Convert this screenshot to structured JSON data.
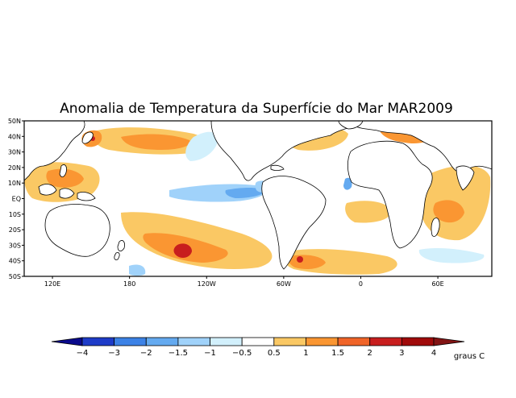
{
  "title": "Anomalia de Temperatura da Superfície do Mar MAR2009",
  "map": {
    "lat_labels": [
      "50N",
      "40N",
      "30N",
      "20N",
      "10N",
      "EQ",
      "10S",
      "20S",
      "30S",
      "40S",
      "50S"
    ],
    "lat_values": [
      50,
      40,
      30,
      20,
      10,
      0,
      -10,
      -20,
      -30,
      -40,
      -50
    ],
    "lon_labels": [
      "120E",
      "180",
      "120W",
      "60W",
      "0",
      "60E"
    ],
    "lon_values": [
      120,
      180,
      240,
      300,
      360,
      420
    ],
    "lon_range": [
      98,
      462
    ],
    "lat_range": [
      -50,
      50
    ]
  },
  "colorbar": {
    "ticks": [
      "-4",
      "-3",
      "-2",
      "-1.5",
      "-1",
      "-0.5",
      "0.5",
      "1",
      "1.5",
      "2",
      "3",
      "4"
    ],
    "colors": [
      "#0a0a8c",
      "#1e3cc8",
      "#3c82e6",
      "#64aaf0",
      "#a0d2fa",
      "#d2f0fc",
      "#ffffff",
      "#fac864",
      "#fa9632",
      "#f06428",
      "#c81e1e",
      "#a00a0a",
      "#821414"
    ],
    "units": "graus C"
  },
  "colors": {
    "warm_1": "#fac864",
    "warm_2": "#fa9632",
    "warm_3": "#f06428",
    "warm_4": "#c81e1e",
    "cool_1": "#d2f0fc",
    "cool_2": "#a0d2fa",
    "cool_3": "#64aaf0",
    "land_outline": "#000000"
  }
}
